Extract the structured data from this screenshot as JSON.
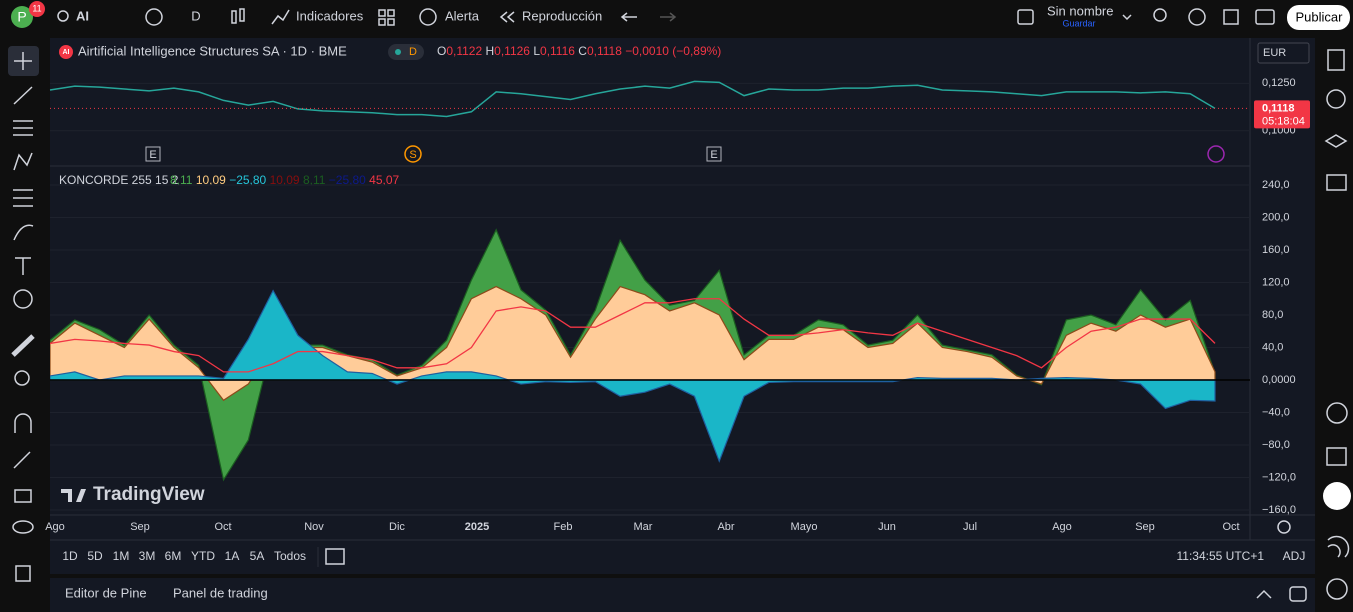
{
  "toolbar": {
    "avatar": "P",
    "badge": "11",
    "symbol": "AI",
    "interval": "D",
    "indicators": "Indicadores",
    "alert": "Alerta",
    "replay": "Reproducción",
    "layout_name": "Sin nombre",
    "save": "Guardar",
    "publish": "Publicar"
  },
  "currency": "EUR",
  "chart_data": [
    {
      "type": "line",
      "title": "Airtificial Intelligence Structures SA · 1D · BME",
      "badge": "AI",
      "session": "D",
      "ohlc": [
        {
          "key": "O",
          "value": "0,1122"
        },
        {
          "key": "H",
          "value": "0,1126"
        },
        {
          "key": "L",
          "value": "0,1116"
        },
        {
          "key": "C",
          "value": "0,1118"
        }
      ],
      "change": "−0,0010 (−0,89%)",
      "series": [
        {
          "color": "#26a69a",
          "values": [
            0.1215,
            0.1235,
            0.123,
            0.122,
            0.121,
            0.1225,
            0.1205,
            0.116,
            0.1135,
            0.1155,
            0.1115,
            0.1105,
            0.11,
            0.1095,
            0.1085,
            0.1085,
            0.1075,
            0.11,
            0.1205,
            0.1195,
            0.118,
            0.1165,
            0.1195,
            0.122,
            0.1235,
            0.1225,
            0.126,
            0.1255,
            0.1185,
            0.122,
            0.1215,
            0.1215,
            0.1225,
            0.1225,
            0.1235,
            0.124,
            0.1215,
            0.121,
            0.1205,
            0.1195,
            0.1185,
            0.1205,
            0.1205,
            0.1205,
            0.12,
            0.1205,
            0.1195,
            0.1118
          ]
        }
      ],
      "ylim": [
        0.0814,
        0.1468
      ],
      "yticks": [
        {
          "value": 0.125,
          "label": "0,1250"
        },
        {
          "value": 0.1,
          "label": "0,1000"
        }
      ],
      "last_value": {
        "value": 0.1118,
        "label": "0,1118"
      },
      "countdown": "05:18:04",
      "events": [
        "E",
        "S",
        "E"
      ]
    },
    {
      "type": "area",
      "title": "KONCORDE 255 15 2",
      "legend_values": [
        {
          "value": 8.11,
          "label": "8,11",
          "color": "#4caf50"
        },
        {
          "value": 10.09,
          "label": "10,09",
          "color": "#ffcc80"
        },
        {
          "value": -25.8,
          "label": "−25,80",
          "color": "#26c6da"
        },
        {
          "value": 10.09,
          "label": "10,09",
          "color": "#880e0e"
        },
        {
          "value": 8.11,
          "label": "8,11",
          "color": "#1b5e20"
        },
        {
          "value": -25.8,
          "label": "−25,80",
          "color": "#0d1a8a"
        },
        {
          "value": 45.07,
          "label": "45,07",
          "color": "#f23645"
        }
      ],
      "series": [
        {
          "color": "#43a047",
          "values": [
            49,
            74,
            62,
            43,
            80,
            43,
            18,
            -123,
            -74,
            49,
            43,
            43,
            31,
            25,
            6,
            18,
            49,
            123,
            185,
            111,
            86,
            31,
            86,
            172,
            123,
            92,
            98,
            135,
            31,
            55,
            55,
            74,
            68,
            43,
            49,
            80,
            43,
            37,
            31,
            6,
            -6,
            74,
            80,
            68,
            111,
            74,
            98,
            8.11
          ]
        },
        {
          "color": "#ffcc99",
          "values": [
            45,
            70,
            55,
            40,
            75,
            40,
            15,
            -25,
            -5,
            40,
            40,
            40,
            30,
            22,
            5,
            15,
            40,
            100,
            115,
            100,
            80,
            28,
            75,
            115,
            105,
            85,
            95,
            80,
            25,
            50,
            50,
            65,
            62,
            40,
            45,
            70,
            40,
            35,
            28,
            5,
            -5,
            55,
            70,
            60,
            80,
            65,
            75,
            10.09
          ]
        },
        {
          "color": "#1ab6c8",
          "values": [
            5,
            10,
            0,
            5,
            5,
            5,
            5,
            2,
            50,
            110,
            55,
            30,
            10,
            8,
            -5,
            5,
            10,
            10,
            5,
            -5,
            -2,
            -3,
            -2,
            -20,
            -15,
            -5,
            -20,
            -100,
            -20,
            -3,
            -2,
            -2,
            -2,
            -2,
            -2,
            3,
            2,
            2,
            2,
            0,
            2,
            3,
            2,
            0,
            -5,
            -35,
            -25,
            -25.8
          ]
        },
        {
          "color": "#f23645",
          "values": [
            45,
            50,
            48,
            45,
            43,
            35,
            30,
            10,
            10,
            20,
            35,
            35,
            30,
            25,
            15,
            15,
            20,
            40,
            85,
            90,
            85,
            65,
            65,
            80,
            95,
            95,
            100,
            100,
            75,
            55,
            55,
            58,
            62,
            58,
            55,
            70,
            60,
            50,
            40,
            30,
            15,
            40,
            60,
            65,
            75,
            75,
            75,
            45.07
          ]
        }
      ],
      "ylim": [
        -166.2,
        262.2
      ],
      "yticks": [
        {
          "value": 240,
          "label": "240,0"
        },
        {
          "value": 200,
          "label": "200,0"
        },
        {
          "value": 160,
          "label": "160,0"
        },
        {
          "value": 120,
          "label": "120,0"
        },
        {
          "value": 80,
          "label": "80,0"
        },
        {
          "value": 40,
          "label": "40,0"
        },
        {
          "value": 0,
          "label": "0,0000"
        },
        {
          "value": -40,
          "label": "−40,0"
        },
        {
          "value": -80,
          "label": "−80,0"
        },
        {
          "value": -120,
          "label": "−120,0"
        },
        {
          "value": -160,
          "label": "−160,0"
        }
      ]
    }
  ],
  "time_axis": [
    "Ago",
    "Sep",
    "Oct",
    "Nov",
    "Dic",
    "2025",
    "Feb",
    "Mar",
    "Abr",
    "Mayo",
    "Jun",
    "Jul",
    "Ago",
    "Sep",
    "Oct"
  ],
  "watermark": "TradingView",
  "ranges": [
    "1D",
    "5D",
    "1M",
    "3M",
    "6M",
    "YTD",
    "1A",
    "5A",
    "Todos"
  ],
  "clock": "11:34:55 UTC+1",
  "adjust": "ADJ",
  "panels": [
    "Editor de Pine",
    "Panel de trading"
  ]
}
